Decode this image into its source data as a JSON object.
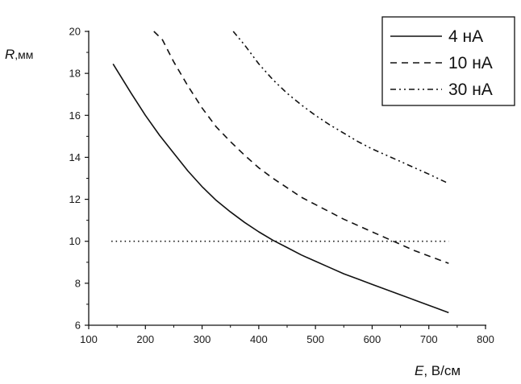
{
  "chart_data": {
    "type": "line",
    "xlabel_var": "E",
    "xlabel_unit": ", В/см",
    "ylabel_var": "R",
    "ylabel_unit": ",мм",
    "xlim": [
      100,
      800
    ],
    "ylim": [
      6,
      20
    ],
    "xticks": [
      "100",
      "200",
      "300",
      "400",
      "500",
      "600",
      "700",
      "800"
    ],
    "yticks": [
      "6",
      "8",
      "10",
      "12",
      "14",
      "16",
      "18",
      "20"
    ],
    "grid": false,
    "legend_position": "top-right",
    "series": [
      {
        "name": "4 нА",
        "dash": "solid",
        "x": [
          143,
          175,
          200,
          225,
          250,
          275,
          300,
          325,
          350,
          375,
          400,
          425,
          450,
          475,
          500,
          525,
          550,
          575,
          600,
          625,
          650,
          675,
          700,
          735
        ],
        "y": [
          18.45,
          17.05,
          16.0,
          15.05,
          14.2,
          13.35,
          12.6,
          11.95,
          11.4,
          10.9,
          10.45,
          10.05,
          9.7,
          9.35,
          9.05,
          8.75,
          8.45,
          8.2,
          7.95,
          7.7,
          7.45,
          7.2,
          6.95,
          6.6
        ]
      },
      {
        "name": "10 нА",
        "dash": "dashed",
        "x": [
          215,
          230,
          250,
          275,
          300,
          325,
          350,
          375,
          400,
          425,
          450,
          475,
          500,
          525,
          550,
          575,
          600,
          625,
          650,
          675,
          700,
          735
        ],
        "y": [
          20.0,
          19.6,
          18.55,
          17.4,
          16.35,
          15.45,
          14.75,
          14.1,
          13.5,
          13.0,
          12.55,
          12.1,
          11.75,
          11.4,
          11.05,
          10.75,
          10.45,
          10.15,
          9.85,
          9.55,
          9.3,
          8.95
        ]
      },
      {
        "name": "30 нА",
        "dash": "dash-dot-dot",
        "x": [
          355,
          375,
          400,
          425,
          450,
          475,
          500,
          525,
          550,
          575,
          600,
          625,
          650,
          675,
          700,
          735
        ],
        "y": [
          20.0,
          19.35,
          18.45,
          17.7,
          17.05,
          16.5,
          16.0,
          15.55,
          15.15,
          14.75,
          14.4,
          14.1,
          13.8,
          13.5,
          13.2,
          12.75
        ]
      }
    ],
    "reference_line": {
      "style": "dotted",
      "y": 10,
      "x": [
        140,
        735
      ]
    }
  }
}
